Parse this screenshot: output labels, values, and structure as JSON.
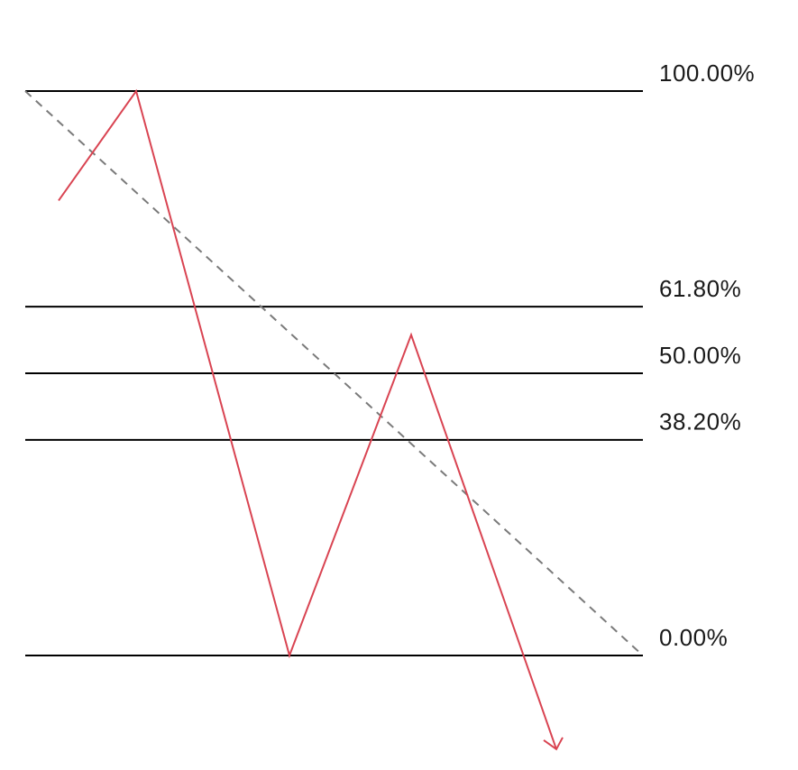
{
  "diagram": {
    "levels": [
      {
        "label": "100.00%",
        "ratio": 1.0
      },
      {
        "label": "61.80%",
        "ratio": 0.618
      },
      {
        "label": "50.00%",
        "ratio": 0.5
      },
      {
        "label": "38.20%",
        "ratio": 0.382
      },
      {
        "label": "0.00%",
        "ratio": 0.0
      }
    ],
    "colors": {
      "level_line": "#000000",
      "price_path": "#d94452",
      "trend_line": "#7a7a7a",
      "label_text": "#1a1a1a"
    },
    "price_path_ratios": [
      0.806,
      1.0,
      0.0,
      0.568,
      -0.166
    ]
  }
}
